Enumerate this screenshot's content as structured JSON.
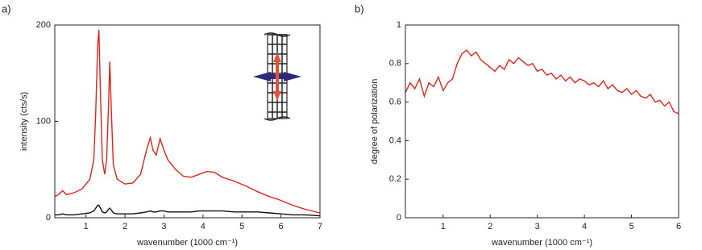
{
  "chart_data": [
    {
      "type": "line",
      "panel_label": "a)",
      "xlabel": "wavenumber (1000 cm⁻¹)",
      "ylabel": "intensity (cts/s)",
      "xlim": [
        0.2,
        7
      ],
      "ylim": [
        0,
        200
      ],
      "xticks": [
        1,
        2,
        3,
        4,
        5,
        6,
        7
      ],
      "yticks": [
        0,
        100,
        200
      ],
      "x": [
        0.2,
        0.3,
        0.4,
        0.5,
        0.7,
        0.9,
        1.1,
        1.2,
        1.25,
        1.3,
        1.33,
        1.37,
        1.42,
        1.48,
        1.53,
        1.58,
        1.61,
        1.65,
        1.7,
        1.8,
        2.0,
        2.2,
        2.4,
        2.55,
        2.65,
        2.72,
        2.8,
        2.9,
        3.0,
        3.1,
        3.2,
        3.3,
        3.5,
        3.7,
        3.9,
        4.1,
        4.3,
        4.5,
        4.8,
        5.1,
        5.4,
        5.7,
        6.0,
        6.3,
        6.6,
        7.0
      ],
      "series": [
        {
          "color": "#d9261c",
          "values": [
            22,
            24,
            28,
            24,
            26,
            30,
            40,
            60,
            110,
            180,
            195,
            130,
            60,
            45,
            60,
            120,
            162,
            110,
            55,
            40,
            35,
            36,
            45,
            70,
            83,
            70,
            65,
            82,
            70,
            60,
            55,
            50,
            43,
            42,
            45,
            48,
            47,
            42,
            38,
            33,
            27,
            22,
            18,
            13,
            9,
            5
          ]
        },
        {
          "color": "#111111",
          "values": [
            3,
            3,
            4,
            3,
            3,
            4,
            5,
            7,
            10,
            13,
            13,
            10,
            6,
            5,
            6,
            9,
            10,
            8,
            5,
            4,
            4,
            4,
            5,
            6,
            7,
            6,
            6,
            7,
            7,
            6,
            6,
            6,
            6,
            6,
            7,
            7,
            7,
            7,
            6,
            6,
            6,
            5,
            4,
            3,
            3,
            2
          ]
        }
      ]
    },
    {
      "type": "line",
      "panel_label": "b)",
      "xlabel": "wavenumber (1000 cm⁻¹)",
      "ylabel": "degree of polarization",
      "xlim": [
        0.2,
        6
      ],
      "ylim": [
        0,
        1
      ],
      "xticks": [
        1,
        2,
        3,
        4,
        5,
        6
      ],
      "yticks": [
        0,
        0.2,
        0.4,
        0.6,
        0.8,
        1
      ],
      "x": [
        0.2,
        0.3,
        0.4,
        0.5,
        0.6,
        0.7,
        0.8,
        0.9,
        1.0,
        1.1,
        1.2,
        1.3,
        1.4,
        1.5,
        1.6,
        1.7,
        1.8,
        1.9,
        2.0,
        2.1,
        2.2,
        2.3,
        2.4,
        2.5,
        2.6,
        2.7,
        2.8,
        2.9,
        3.0,
        3.1,
        3.2,
        3.3,
        3.4,
        3.5,
        3.6,
        3.7,
        3.8,
        3.9,
        4.0,
        4.1,
        4.2,
        4.3,
        4.4,
        4.5,
        4.6,
        4.7,
        4.8,
        4.9,
        5.0,
        5.1,
        5.2,
        5.3,
        5.4,
        5.5,
        5.6,
        5.7,
        5.8,
        5.9,
        6.0
      ],
      "series": [
        {
          "color": "#d9261c",
          "values": [
            0.65,
            0.7,
            0.67,
            0.72,
            0.63,
            0.7,
            0.68,
            0.73,
            0.66,
            0.7,
            0.72,
            0.8,
            0.85,
            0.87,
            0.84,
            0.86,
            0.82,
            0.8,
            0.78,
            0.76,
            0.79,
            0.77,
            0.82,
            0.8,
            0.83,
            0.81,
            0.79,
            0.8,
            0.76,
            0.77,
            0.74,
            0.75,
            0.72,
            0.74,
            0.71,
            0.73,
            0.7,
            0.72,
            0.71,
            0.69,
            0.7,
            0.68,
            0.71,
            0.67,
            0.69,
            0.66,
            0.65,
            0.67,
            0.64,
            0.66,
            0.63,
            0.62,
            0.64,
            0.6,
            0.61,
            0.58,
            0.6,
            0.55,
            0.54
          ]
        }
      ]
    }
  ]
}
